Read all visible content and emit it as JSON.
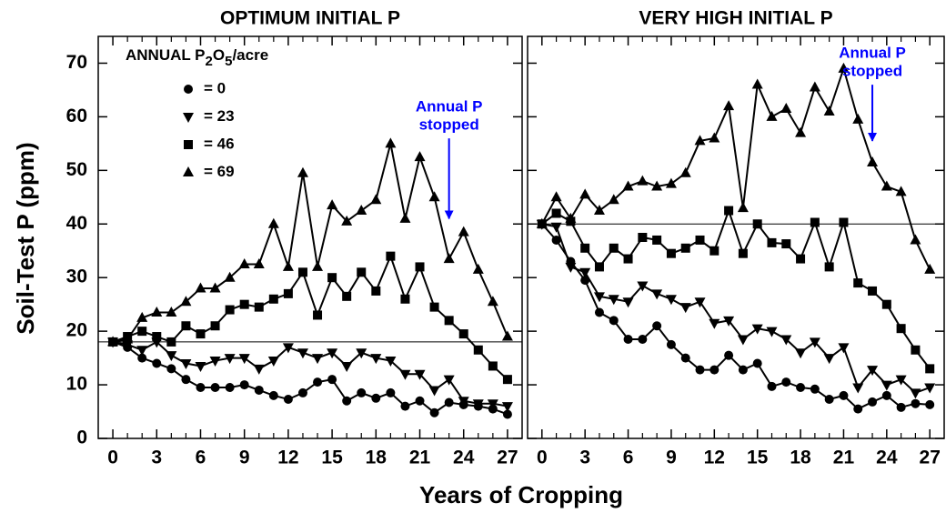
{
  "figure": {
    "xlabel": "Years of Cropping",
    "ylabel": "Soil-Test P (ppm)"
  },
  "chart_data": [
    {
      "type": "line",
      "title": "OPTIMUM INITIAL P",
      "x": [
        0,
        1,
        2,
        3,
        4,
        5,
        6,
        7,
        8,
        9,
        10,
        11,
        12,
        13,
        14,
        15,
        16,
        17,
        18,
        19,
        20,
        21,
        22,
        23,
        24,
        25,
        26,
        27
      ],
      "xlim": [
        -1,
        28
      ],
      "xticks": [
        0,
        3,
        6,
        9,
        12,
        15,
        18,
        21,
        24,
        27
      ],
      "xminorticks": [
        1,
        2,
        4,
        5,
        7,
        8,
        10,
        11,
        13,
        14,
        16,
        17,
        19,
        20,
        22,
        23,
        25,
        26
      ],
      "ylim": [
        0,
        75
      ],
      "yticks": [
        0,
        10,
        20,
        30,
        40,
        50,
        60,
        70
      ],
      "ytick_labels": true,
      "hline": 18,
      "legend": {
        "title_parts": [
          "ANNUAL P",
          "2",
          "O",
          "5",
          "/acre"
        ],
        "loc": "upper left"
      },
      "series": [
        {
          "name": "= 0",
          "marker": "circle",
          "color": "#000000",
          "values": [
            18,
            17,
            15,
            14,
            13,
            11,
            9.5,
            9.5,
            9.5,
            10,
            9,
            8,
            7.3,
            8.5,
            10.5,
            11,
            7,
            8.5,
            7.5,
            8.5,
            6,
            7,
            4.8,
            6.7,
            6.3,
            6,
            5.5,
            4.5
          ]
        },
        {
          "name": "= 23",
          "marker": "triangle-down",
          "color": "#000000",
          "values": [
            18,
            17.5,
            16.5,
            18,
            15.5,
            14,
            13.5,
            14.5,
            15,
            15,
            13,
            14.5,
            17,
            16,
            15,
            16,
            13.5,
            16,
            15,
            14.5,
            12,
            12,
            9,
            11,
            7,
            6.5,
            6.5,
            6
          ]
        },
        {
          "name": "= 46",
          "marker": "square",
          "color": "#000000",
          "values": [
            18,
            19,
            20,
            19,
            18,
            21,
            19.5,
            21,
            24,
            25,
            24.5,
            26,
            27,
            31,
            23,
            30,
            26.5,
            31,
            27.5,
            34,
            26,
            32,
            24.5,
            22,
            19.5,
            16.5,
            13.5,
            11
          ]
        },
        {
          "name": "= 69",
          "marker": "triangle-up",
          "color": "#000000",
          "values": [
            18,
            18.5,
            22.5,
            23.5,
            23.5,
            25.5,
            28,
            28,
            30,
            32.5,
            32.5,
            40,
            32,
            49.5,
            32,
            43.5,
            40.5,
            42.5,
            44.5,
            55,
            41,
            52.5,
            45,
            33.5,
            38.5,
            31.5,
            25.5,
            19
          ]
        }
      ],
      "annotation": {
        "text": [
          "Annual P",
          "stopped"
        ],
        "color": "#0000ff",
        "xy": [
          23,
          41
        ],
        "xytext": [
          23,
          57
        ]
      }
    },
    {
      "type": "line",
      "title": "VERY HIGH INITIAL P",
      "x": [
        0,
        1,
        2,
        3,
        4,
        5,
        6,
        7,
        8,
        9,
        10,
        11,
        12,
        13,
        14,
        15,
        16,
        17,
        18,
        19,
        20,
        21,
        22,
        23,
        24,
        25,
        26,
        27
      ],
      "xlim": [
        -1,
        28
      ],
      "xticks": [
        0,
        3,
        6,
        9,
        12,
        15,
        18,
        21,
        24,
        27
      ],
      "xminorticks": [
        1,
        2,
        4,
        5,
        7,
        8,
        10,
        11,
        13,
        14,
        16,
        17,
        19,
        20,
        22,
        23,
        25,
        26
      ],
      "ylim": [
        0,
        75
      ],
      "yticks": [
        0,
        10,
        20,
        30,
        40,
        50,
        60,
        70
      ],
      "ytick_labels": false,
      "hline": 40,
      "series": [
        {
          "marker": "circle",
          "color": "#000000",
          "values": [
            40,
            37,
            33,
            29.5,
            23.5,
            22,
            18.5,
            18.5,
            21,
            17.5,
            15,
            12.8,
            12.8,
            15.5,
            12.8,
            14,
            9.7,
            10.5,
            9.5,
            9.2,
            7.3,
            8,
            5.5,
            6.8,
            8,
            5.8,
            6.5,
            6.3
          ]
        },
        {
          "marker": "triangle-down",
          "color": "#000000",
          "values": [
            40,
            39.5,
            32,
            31,
            26.5,
            26,
            25.5,
            28.5,
            27,
            26,
            24.5,
            25.5,
            21.5,
            22,
            18.5,
            20.5,
            20,
            18.5,
            16,
            18,
            15,
            17,
            9.5,
            12.8,
            10,
            11,
            8.5,
            9.5
          ]
        },
        {
          "marker": "square",
          "color": "#000000",
          "values": [
            40,
            42,
            40.5,
            35.5,
            32,
            35.5,
            33.5,
            37.5,
            37,
            34.5,
            35.5,
            37,
            35,
            42.5,
            34.5,
            40,
            36.5,
            36.3,
            33.5,
            40.3,
            32,
            40.3,
            29,
            27.5,
            25,
            20.5,
            16.5,
            13
          ]
        },
        {
          "marker": "triangle-up",
          "color": "#000000",
          "values": [
            40,
            45,
            41,
            45.5,
            42.5,
            44.5,
            47,
            48,
            47,
            47.5,
            49.5,
            55.5,
            56,
            62,
            43,
            66,
            60,
            61.5,
            57,
            65.5,
            61,
            69,
            59.5,
            51.5,
            47,
            46,
            37,
            31.5
          ]
        }
      ],
      "annotation": {
        "text": [
          "Annual P",
          "stopped"
        ],
        "color": "#0000ff",
        "xy": [
          23,
          55.5
        ],
        "xytext": [
          23,
          67
        ]
      }
    }
  ]
}
